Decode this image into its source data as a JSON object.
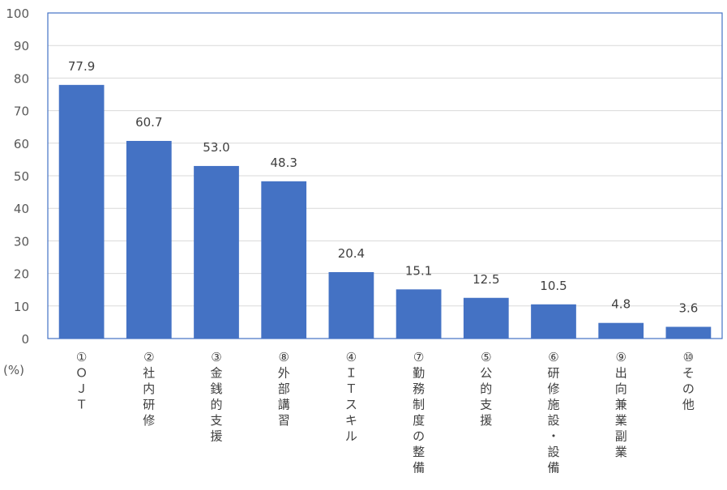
{
  "chart_data": {
    "type": "bar",
    "unit_label": "(%)",
    "categories": [
      "①ＯＪＴ",
      "②社内研修",
      "③金銭的支援",
      "⑧外部講習",
      "④ＩＴスキル",
      "⑦勤務制度の整備",
      "⑤公的支援",
      "⑥研修施設・設備",
      "⑨出向兼業副業",
      "⑩その他"
    ],
    "values": [
      77.9,
      60.7,
      53.0,
      48.3,
      20.4,
      15.1,
      12.5,
      10.5,
      4.8,
      3.6
    ],
    "value_labels": [
      "77.9",
      "60.7",
      "53.0",
      "48.3",
      "20.4",
      "15.1",
      "12.5",
      "10.5",
      "4.8",
      "3.6"
    ],
    "y_ticks": [
      0,
      10,
      20,
      30,
      40,
      50,
      60,
      70,
      80,
      90,
      100
    ],
    "ylim": [
      0,
      100
    ],
    "grid": true,
    "bar_color": "#4472C4",
    "grid_color": "#D9D9D9",
    "frame_color": "#4472C4"
  }
}
